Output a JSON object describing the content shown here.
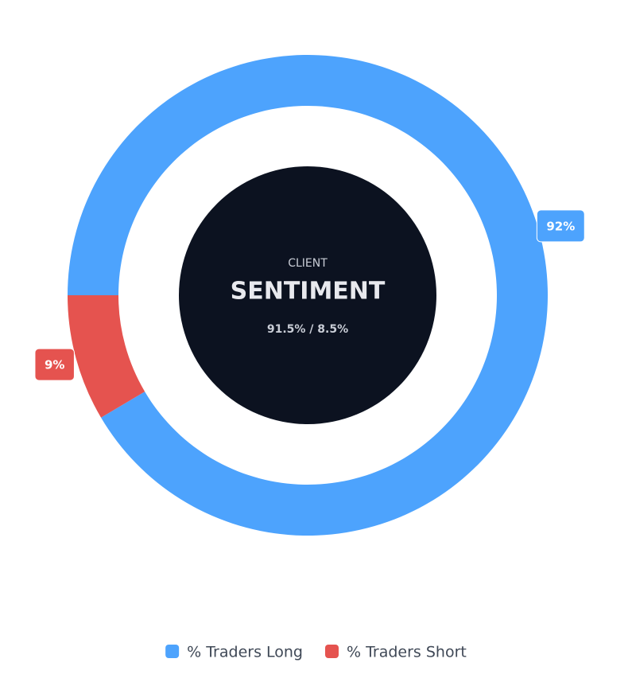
{
  "chart_data": {
    "type": "donut",
    "center_label": "CLIENT",
    "center_title": "SENTIMENT",
    "center_detail": "91.5% / 8.5%",
    "series": [
      {
        "name": "% Traders Long",
        "color": "#4da3fd",
        "values": [
          91.5
        ],
        "value_labels": [
          "92%"
        ]
      },
      {
        "name": "% Traders Short",
        "color": "#e5534f",
        "values": [
          8.5
        ],
        "value_labels": [
          "9%"
        ]
      }
    ],
    "legend": "bottom"
  }
}
